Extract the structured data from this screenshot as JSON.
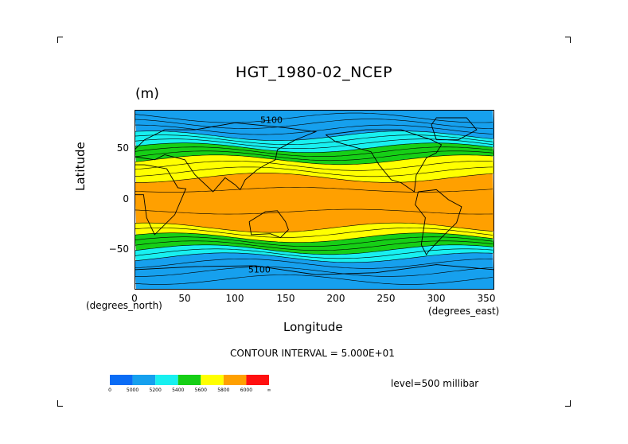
{
  "chart_data": {
    "type": "heatmap",
    "title": "HGT_1980-02_NCEP",
    "units": "(m)",
    "xlabel": "Longitude",
    "ylabel": "Latitude",
    "x_unit_label": "(degrees_east)",
    "y_unit_label": "(degrees_north)",
    "xlim": [
      0,
      357.5
    ],
    "ylim": [
      -90,
      90
    ],
    "x_ticks": [
      "0",
      "50",
      "100",
      "150",
      "200",
      "250",
      "300",
      "350"
    ],
    "y_ticks": [
      "50",
      "0",
      "−50"
    ],
    "contour_interval_text": "CONTOUR INTERVAL = 5.000E+01",
    "level_text": "level=500 millibar",
    "contour_labels": [
      "5100",
      "5100"
    ],
    "colorbar": {
      "labels": [
        "0",
        "5000",
        "5200",
        "5400",
        "5600",
        "5800",
        "6000",
        "∞"
      ],
      "colors": [
        "#0a6cf5",
        "#16a0ee",
        "#18f0f0",
        "#16cf16",
        "#ffff00",
        "#ffa000",
        "#ff1010"
      ]
    },
    "zonal_bands": [
      {
        "lat_from": 90,
        "lat_to": 64,
        "value": 5100,
        "color": "#16a0ee"
      },
      {
        "lat_from": 64,
        "lat_to": 52,
        "value": 5300,
        "color": "#18f0f0"
      },
      {
        "lat_from": 52,
        "lat_to": 40,
        "value": 5500,
        "color": "#16cf16"
      },
      {
        "lat_from": 40,
        "lat_to": 22,
        "value": 5700,
        "color": "#ffff00"
      },
      {
        "lat_from": 22,
        "lat_to": -28,
        "value": 5850,
        "color": "#ffa000"
      },
      {
        "lat_from": -28,
        "lat_to": -38,
        "value": 5700,
        "color": "#ffff00"
      },
      {
        "lat_from": -38,
        "lat_to": -50,
        "value": 5500,
        "color": "#16cf16"
      },
      {
        "lat_from": -50,
        "lat_to": -58,
        "value": 5300,
        "color": "#18f0f0"
      },
      {
        "lat_from": -58,
        "lat_to": -90,
        "value": 5100,
        "color": "#16a0ee"
      }
    ]
  }
}
